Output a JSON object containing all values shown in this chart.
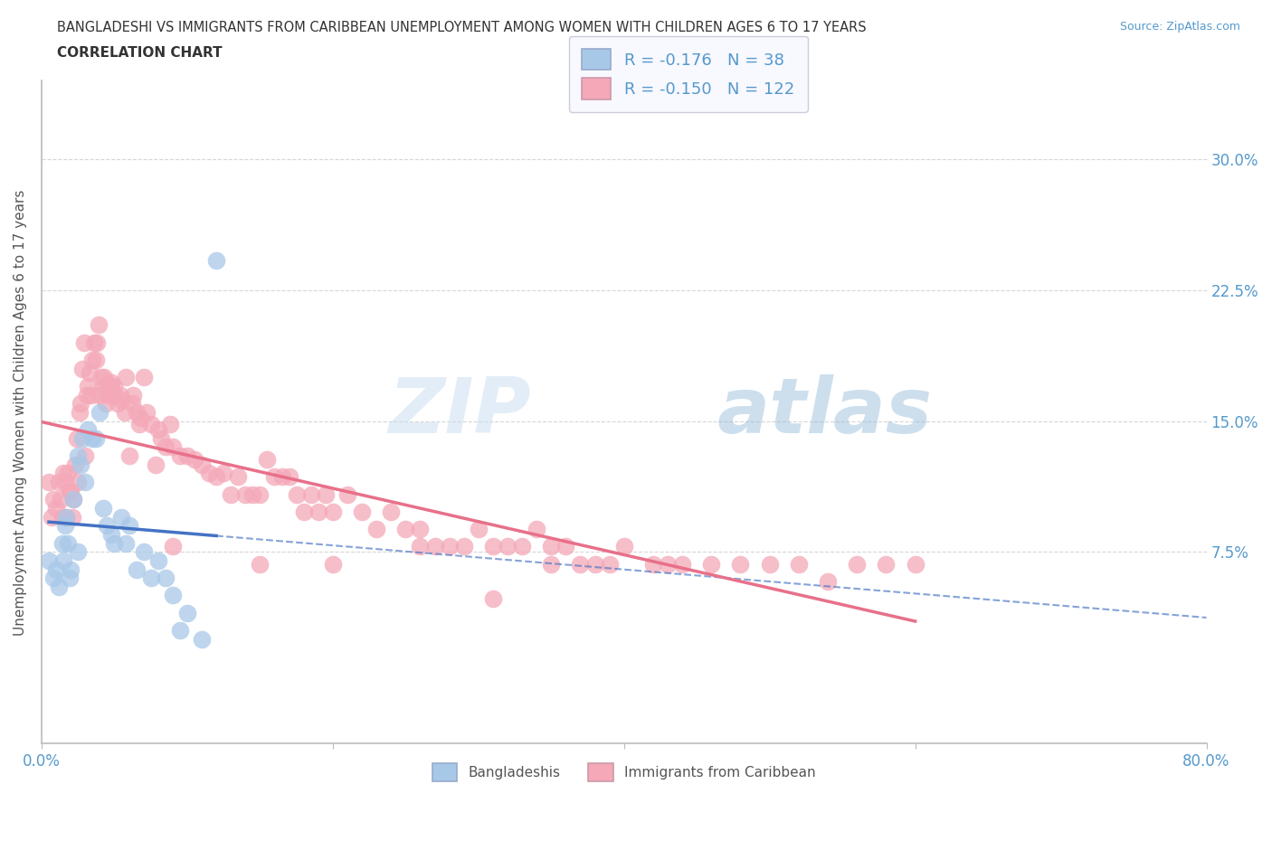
{
  "title_line1": "BANGLADESHI VS IMMIGRANTS FROM CARIBBEAN UNEMPLOYMENT AMONG WOMEN WITH CHILDREN AGES 6 TO 17 YEARS",
  "title_line2": "CORRELATION CHART",
  "source": "Source: ZipAtlas.com",
  "ylabel": "Unemployment Among Women with Children Ages 6 to 17 years",
  "xlim": [
    0.0,
    0.8
  ],
  "ylim": [
    -0.035,
    0.345
  ],
  "ytick_positions": [
    0.075,
    0.15,
    0.225,
    0.3
  ],
  "ytick_labels": [
    "7.5%",
    "15.0%",
    "22.5%",
    "30.0%"
  ],
  "color_bangladeshi": "#a8c8e8",
  "color_caribbean": "#f4a8b8",
  "regression_bangladeshi_color": "#4472c4",
  "regression_caribbean_color": "#e8708a",
  "R_bangladeshi": -0.176,
  "N_bangladeshi": 38,
  "R_caribbean": -0.15,
  "N_caribbean": 122,
  "watermark_zip": "ZIP",
  "watermark_atlas": "atlas",
  "bangladeshi_x": [
    0.005,
    0.008,
    0.01,
    0.012,
    0.014,
    0.015,
    0.016,
    0.017,
    0.018,
    0.019,
    0.02,
    0.022,
    0.025,
    0.025,
    0.027,
    0.028,
    0.03,
    0.032,
    0.035,
    0.037,
    0.04,
    0.042,
    0.045,
    0.048,
    0.05,
    0.055,
    0.058,
    0.06,
    0.065,
    0.07,
    0.075,
    0.08,
    0.085,
    0.09,
    0.095,
    0.1,
    0.11,
    0.12
  ],
  "bangladeshi_y": [
    0.07,
    0.06,
    0.065,
    0.055,
    0.08,
    0.07,
    0.09,
    0.095,
    0.08,
    0.06,
    0.065,
    0.105,
    0.075,
    0.13,
    0.125,
    0.14,
    0.115,
    0.145,
    0.14,
    0.14,
    0.155,
    0.1,
    0.09,
    0.085,
    0.08,
    0.095,
    0.08,
    0.09,
    0.065,
    0.075,
    0.06,
    0.07,
    0.06,
    0.05,
    0.03,
    0.04,
    0.025,
    0.242
  ],
  "caribbean_x": [
    0.005,
    0.007,
    0.008,
    0.01,
    0.012,
    0.013,
    0.014,
    0.015,
    0.016,
    0.017,
    0.018,
    0.019,
    0.02,
    0.021,
    0.022,
    0.023,
    0.024,
    0.025,
    0.026,
    0.027,
    0.028,
    0.029,
    0.03,
    0.031,
    0.032,
    0.033,
    0.034,
    0.035,
    0.036,
    0.037,
    0.038,
    0.039,
    0.04,
    0.041,
    0.042,
    0.043,
    0.044,
    0.045,
    0.046,
    0.047,
    0.048,
    0.049,
    0.05,
    0.052,
    0.054,
    0.055,
    0.057,
    0.058,
    0.06,
    0.062,
    0.063,
    0.065,
    0.067,
    0.068,
    0.07,
    0.072,
    0.075,
    0.078,
    0.08,
    0.082,
    0.085,
    0.088,
    0.09,
    0.095,
    0.1,
    0.105,
    0.11,
    0.115,
    0.12,
    0.125,
    0.13,
    0.135,
    0.14,
    0.145,
    0.15,
    0.155,
    0.16,
    0.165,
    0.17,
    0.175,
    0.18,
    0.185,
    0.19,
    0.195,
    0.2,
    0.21,
    0.22,
    0.23,
    0.24,
    0.25,
    0.26,
    0.27,
    0.28,
    0.29,
    0.3,
    0.31,
    0.32,
    0.33,
    0.34,
    0.35,
    0.36,
    0.37,
    0.38,
    0.39,
    0.4,
    0.42,
    0.44,
    0.46,
    0.48,
    0.5,
    0.52,
    0.54,
    0.56,
    0.58,
    0.6,
    0.26,
    0.31,
    0.43,
    0.35,
    0.2,
    0.15,
    0.09
  ],
  "caribbean_y": [
    0.115,
    0.095,
    0.105,
    0.1,
    0.115,
    0.105,
    0.095,
    0.12,
    0.115,
    0.095,
    0.12,
    0.11,
    0.11,
    0.095,
    0.105,
    0.125,
    0.14,
    0.115,
    0.155,
    0.16,
    0.18,
    0.195,
    0.13,
    0.165,
    0.17,
    0.178,
    0.165,
    0.185,
    0.195,
    0.185,
    0.195,
    0.205,
    0.165,
    0.175,
    0.17,
    0.175,
    0.16,
    0.168,
    0.165,
    0.17,
    0.172,
    0.165,
    0.17,
    0.16,
    0.165,
    0.162,
    0.155,
    0.175,
    0.13,
    0.16,
    0.165,
    0.155,
    0.148,
    0.152,
    0.175,
    0.155,
    0.148,
    0.125,
    0.145,
    0.14,
    0.135,
    0.148,
    0.135,
    0.13,
    0.13,
    0.128,
    0.125,
    0.12,
    0.118,
    0.12,
    0.108,
    0.118,
    0.108,
    0.108,
    0.108,
    0.128,
    0.118,
    0.118,
    0.118,
    0.108,
    0.098,
    0.108,
    0.098,
    0.108,
    0.098,
    0.108,
    0.098,
    0.088,
    0.098,
    0.088,
    0.088,
    0.078,
    0.078,
    0.078,
    0.088,
    0.078,
    0.078,
    0.078,
    0.088,
    0.078,
    0.078,
    0.068,
    0.068,
    0.068,
    0.078,
    0.068,
    0.068,
    0.068,
    0.068,
    0.068,
    0.068,
    0.058,
    0.068,
    0.068,
    0.068,
    0.078,
    0.048,
    0.068,
    0.068,
    0.068,
    0.068,
    0.078
  ],
  "bg_color": "#ffffff",
  "grid_color": "#cccccc",
  "axis_color": "#bbbbbb",
  "title_color": "#333333",
  "label_color": "#555555",
  "tick_color": "#5599cc",
  "legend_bg": "#f8f8ff"
}
